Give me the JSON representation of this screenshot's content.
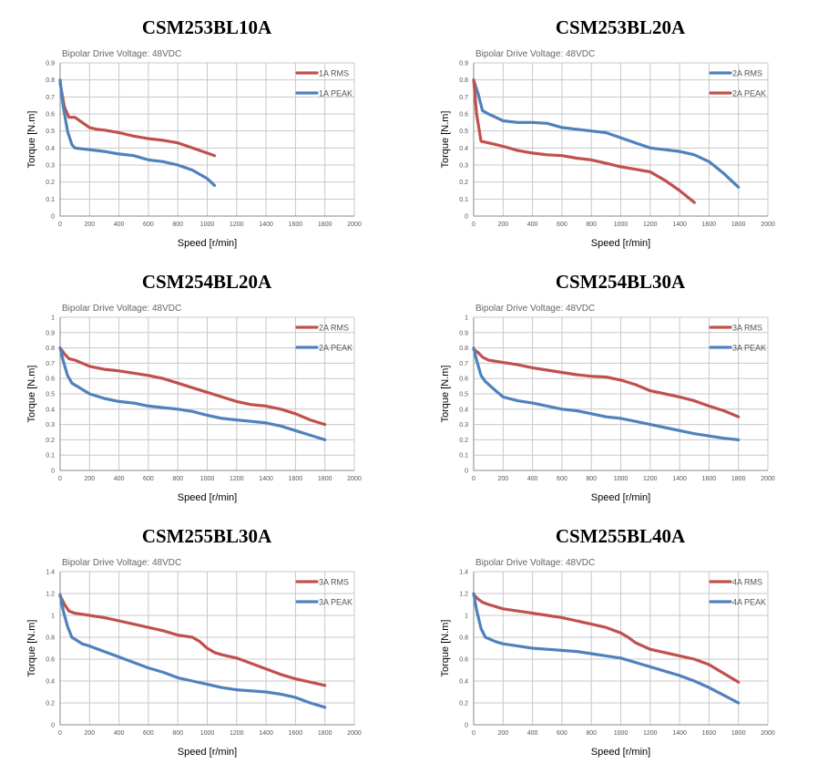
{
  "chart_data": [
    {
      "type": "line",
      "title": "CSM253BL10A",
      "subtitle": "Bipolar Drive  Voltage: 48VDC",
      "xlabel": "Speed [r/min]",
      "ylabel": "Torque [N.m]",
      "xlim": [
        0,
        2000
      ],
      "xstep": 200,
      "ylim": [
        0,
        0.9
      ],
      "ystep": 0.1,
      "series": [
        {
          "name": "1A RMS",
          "color": "#c0504d",
          "x": [
            0,
            30,
            60,
            100,
            150,
            200,
            250,
            300,
            400,
            500,
            600,
            700,
            800,
            900,
            1000,
            1050
          ],
          "y": [
            0.78,
            0.64,
            0.58,
            0.58,
            0.55,
            0.52,
            0.51,
            0.505,
            0.49,
            0.47,
            0.455,
            0.445,
            0.43,
            0.4,
            0.37,
            0.355
          ]
        },
        {
          "name": "1A PEAK",
          "color": "#4f81bd",
          "x": [
            0,
            20,
            50,
            80,
            100,
            150,
            200,
            250,
            300,
            400,
            500,
            600,
            700,
            800,
            900,
            1000,
            1050
          ],
          "y": [
            0.8,
            0.65,
            0.5,
            0.42,
            0.4,
            0.395,
            0.39,
            0.385,
            0.38,
            0.365,
            0.355,
            0.33,
            0.32,
            0.3,
            0.27,
            0.22,
            0.18
          ]
        }
      ]
    },
    {
      "type": "line",
      "title": "CSM253BL20A",
      "subtitle": "Bipolar Drive  Voltage: 48VDC",
      "xlabel": "Speed [r/min]",
      "ylabel": "Torque [N.m]",
      "xlim": [
        0,
        2000
      ],
      "xstep": 200,
      "ylim": [
        0,
        0.9
      ],
      "ystep": 0.1,
      "series": [
        {
          "name": "2A RMS",
          "color": "#4f81bd",
          "x": [
            0,
            30,
            60,
            100,
            150,
            200,
            300,
            400,
            500,
            600,
            700,
            800,
            900,
            1000,
            1100,
            1200,
            1300,
            1400,
            1500,
            1600,
            1700,
            1800
          ],
          "y": [
            0.8,
            0.72,
            0.62,
            0.6,
            0.58,
            0.56,
            0.55,
            0.55,
            0.545,
            0.52,
            0.51,
            0.5,
            0.49,
            0.46,
            0.43,
            0.4,
            0.39,
            0.38,
            0.36,
            0.32,
            0.25,
            0.17
          ]
        },
        {
          "name": "2A PEAK",
          "color": "#c0504d",
          "x": [
            0,
            20,
            50,
            100,
            150,
            200,
            300,
            400,
            500,
            600,
            700,
            800,
            900,
            1000,
            1100,
            1200,
            1300,
            1400,
            1500
          ],
          "y": [
            0.8,
            0.6,
            0.44,
            0.43,
            0.42,
            0.41,
            0.385,
            0.37,
            0.36,
            0.355,
            0.34,
            0.33,
            0.31,
            0.29,
            0.275,
            0.26,
            0.21,
            0.15,
            0.08
          ]
        }
      ]
    },
    {
      "type": "line",
      "title": "CSM254BL20A",
      "subtitle": "Bipolar Drive  Voltage: 48VDC",
      "xlabel": "Speed [r/min]",
      "ylabel": "Torque [N.m]",
      "xlim": [
        0,
        2000
      ],
      "xstep": 200,
      "ylim": [
        0,
        1
      ],
      "ystep": 0.1,
      "series": [
        {
          "name": "2A RMS",
          "color": "#c0504d",
          "x": [
            0,
            30,
            60,
            100,
            200,
            300,
            400,
            500,
            600,
            700,
            800,
            900,
            1000,
            1100,
            1200,
            1300,
            1400,
            1500,
            1600,
            1700,
            1800
          ],
          "y": [
            0.8,
            0.76,
            0.73,
            0.72,
            0.68,
            0.66,
            0.65,
            0.635,
            0.62,
            0.6,
            0.57,
            0.54,
            0.51,
            0.48,
            0.45,
            0.43,
            0.42,
            0.4,
            0.37,
            0.33,
            0.3
          ]
        },
        {
          "name": "2A PEAK",
          "color": "#4f81bd",
          "x": [
            0,
            20,
            50,
            80,
            150,
            200,
            300,
            400,
            500,
            600,
            700,
            800,
            900,
            1000,
            1100,
            1200,
            1300,
            1400,
            1500,
            1600,
            1700,
            1800
          ],
          "y": [
            0.8,
            0.72,
            0.62,
            0.57,
            0.53,
            0.5,
            0.47,
            0.45,
            0.44,
            0.42,
            0.41,
            0.4,
            0.385,
            0.36,
            0.34,
            0.33,
            0.32,
            0.31,
            0.29,
            0.26,
            0.23,
            0.2
          ]
        }
      ]
    },
    {
      "type": "line",
      "title": "CSM254BL30A",
      "subtitle": "Bipolar Drive  Voltage: 48VDC",
      "xlabel": "Speed [r/min]",
      "ylabel": "Torque [N.m]",
      "xlim": [
        0,
        2000
      ],
      "xstep": 200,
      "ylim": [
        0,
        1
      ],
      "ystep": 0.1,
      "series": [
        {
          "name": "3A RMS",
          "color": "#c0504d",
          "x": [
            0,
            30,
            60,
            100,
            200,
            300,
            400,
            500,
            600,
            700,
            800,
            900,
            1000,
            1100,
            1200,
            1300,
            1400,
            1500,
            1600,
            1700,
            1800
          ],
          "y": [
            0.79,
            0.77,
            0.74,
            0.72,
            0.705,
            0.69,
            0.67,
            0.655,
            0.64,
            0.625,
            0.615,
            0.61,
            0.59,
            0.56,
            0.52,
            0.5,
            0.48,
            0.455,
            0.42,
            0.39,
            0.35
          ]
        },
        {
          "name": "3A PEAK",
          "color": "#4f81bd",
          "x": [
            0,
            20,
            50,
            80,
            150,
            200,
            300,
            400,
            500,
            600,
            700,
            800,
            900,
            1000,
            1100,
            1200,
            1300,
            1400,
            1500,
            1600,
            1700,
            1800
          ],
          "y": [
            0.8,
            0.72,
            0.62,
            0.58,
            0.52,
            0.48,
            0.455,
            0.44,
            0.42,
            0.4,
            0.39,
            0.37,
            0.35,
            0.34,
            0.32,
            0.3,
            0.28,
            0.26,
            0.24,
            0.225,
            0.21,
            0.2
          ]
        }
      ]
    },
    {
      "type": "line",
      "title": "CSM255BL30A",
      "subtitle": "Bipolar Drive  Voltage: 48VDC",
      "xlabel": "Speed [r/min]",
      "ylabel": "Torque [N.m]",
      "xlim": [
        0,
        2000
      ],
      "xstep": 200,
      "ylim": [
        0,
        1.4
      ],
      "ystep": 0.2,
      "series": [
        {
          "name": "3A RMS",
          "color": "#c0504d",
          "x": [
            0,
            30,
            60,
            100,
            200,
            300,
            400,
            500,
            600,
            700,
            800,
            900,
            950,
            1000,
            1050,
            1100,
            1200,
            1300,
            1400,
            1500,
            1600,
            1700,
            1800
          ],
          "y": [
            1.18,
            1.1,
            1.04,
            1.02,
            1.0,
            0.98,
            0.95,
            0.92,
            0.89,
            0.86,
            0.82,
            0.8,
            0.76,
            0.7,
            0.66,
            0.64,
            0.61,
            0.56,
            0.51,
            0.46,
            0.42,
            0.39,
            0.36
          ]
        },
        {
          "name": "3A PEAK",
          "color": "#4f81bd",
          "x": [
            0,
            20,
            50,
            80,
            150,
            200,
            300,
            400,
            500,
            600,
            700,
            800,
            900,
            1000,
            1100,
            1200,
            1300,
            1400,
            1500,
            1600,
            1700,
            1800
          ],
          "y": [
            1.19,
            1.05,
            0.9,
            0.8,
            0.74,
            0.72,
            0.67,
            0.62,
            0.57,
            0.52,
            0.48,
            0.43,
            0.4,
            0.37,
            0.34,
            0.32,
            0.31,
            0.3,
            0.28,
            0.25,
            0.2,
            0.16
          ]
        }
      ]
    },
    {
      "type": "line",
      "title": "CSM255BL40A",
      "subtitle": "Bipolar Drive  Voltage: 48VDC",
      "xlabel": "Speed [r/min]",
      "ylabel": "Torque [N.m]",
      "xlim": [
        0,
        2000
      ],
      "xstep": 200,
      "ylim": [
        0,
        1.4
      ],
      "ystep": 0.2,
      "series": [
        {
          "name": "4A RMS",
          "color": "#c0504d",
          "x": [
            0,
            30,
            60,
            100,
            200,
            300,
            400,
            500,
            600,
            700,
            800,
            900,
            1000,
            1050,
            1100,
            1200,
            1300,
            1400,
            1500,
            1600,
            1700,
            1800
          ],
          "y": [
            1.19,
            1.15,
            1.12,
            1.1,
            1.06,
            1.04,
            1.02,
            1.0,
            0.98,
            0.95,
            0.92,
            0.89,
            0.84,
            0.8,
            0.75,
            0.69,
            0.66,
            0.63,
            0.6,
            0.55,
            0.47,
            0.39
          ]
        },
        {
          "name": "4A PEAK",
          "color": "#4f81bd",
          "x": [
            0,
            20,
            50,
            80,
            150,
            200,
            300,
            400,
            500,
            600,
            700,
            800,
            900,
            1000,
            1100,
            1200,
            1300,
            1400,
            1500,
            1600,
            1700,
            1800
          ],
          "y": [
            1.2,
            1.05,
            0.88,
            0.8,
            0.76,
            0.74,
            0.72,
            0.7,
            0.69,
            0.68,
            0.67,
            0.65,
            0.63,
            0.61,
            0.57,
            0.53,
            0.49,
            0.45,
            0.4,
            0.34,
            0.27,
            0.2
          ]
        }
      ]
    }
  ]
}
